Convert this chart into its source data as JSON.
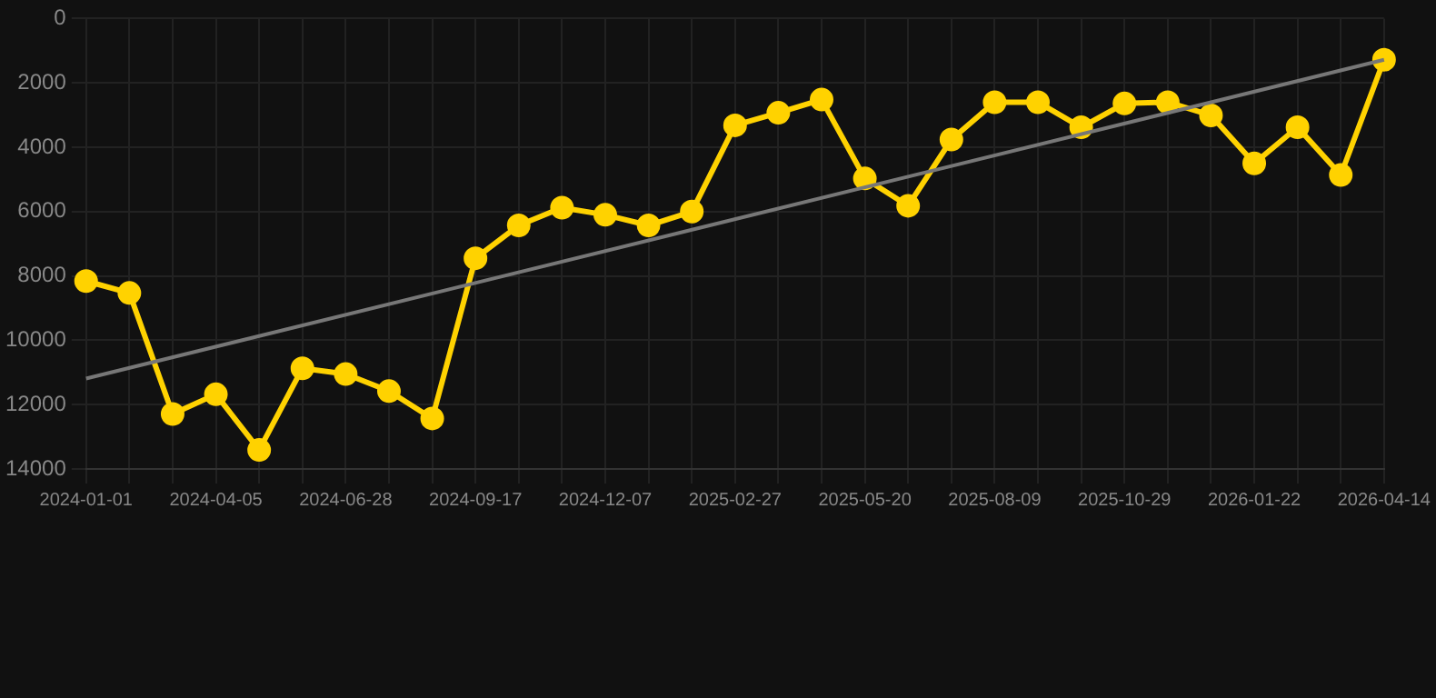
{
  "chart_data": {
    "type": "line",
    "categories": [
      "2024-01-01",
      null,
      null,
      "2024-04-05",
      null,
      null,
      "2024-06-28",
      null,
      null,
      "2024-09-17",
      null,
      null,
      "2024-12-07",
      null,
      null,
      "2025-02-27",
      null,
      null,
      "2025-05-20",
      null,
      null,
      "2025-08-09",
      null,
      null,
      "2025-10-29",
      null,
      null,
      "2026-01-22",
      null,
      null,
      "2026-04-14"
    ],
    "series": [
      {
        "color": "#ffd200",
        "marker": "circle",
        "values": [
          8160,
          8530,
          12290,
          11680,
          13410,
          10870,
          11050,
          11580,
          12430,
          7450,
          6430,
          5880,
          6100,
          6430,
          6000,
          3320,
          2930,
          2520,
          4970,
          5820,
          3760,
          2600,
          2600,
          3380,
          2640,
          2600,
          3010,
          4500,
          3380,
          4860,
          1280
        ]
      },
      {
        "color": "#777777",
        "marker": "none",
        "values": [
          11190,
          null,
          null,
          null,
          null,
          null,
          null,
          null,
          null,
          null,
          null,
          null,
          null,
          null,
          null,
          null,
          null,
          null,
          null,
          null,
          null,
          null,
          null,
          null,
          null,
          null,
          null,
          null,
          null,
          null,
          1280
        ]
      }
    ],
    "ylim": [
      14000,
      0
    ],
    "yticks": [
      0,
      2000,
      4000,
      6000,
      8000,
      10000,
      12000,
      14000
    ],
    "grid": true,
    "legend": false
  }
}
